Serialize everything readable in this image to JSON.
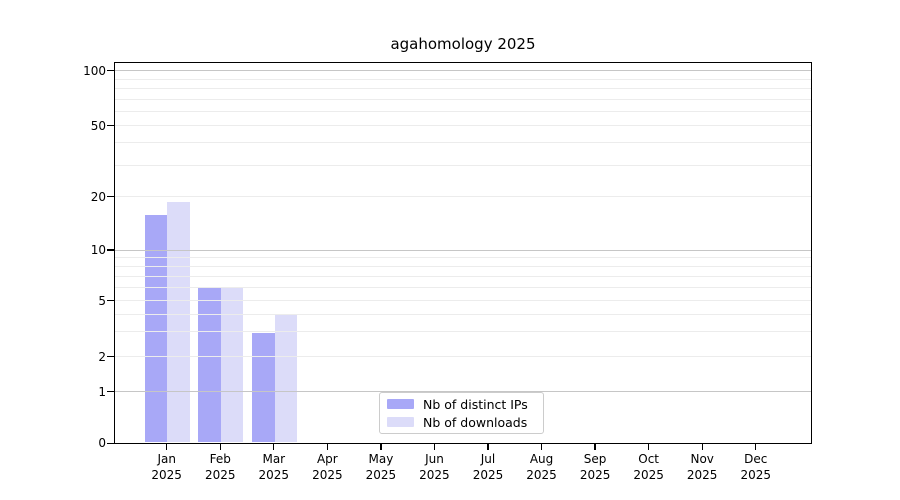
{
  "chart_data": {
    "type": "bar",
    "title": "agahomology 2025",
    "categories": [
      "Jan",
      "Feb",
      "Mar",
      "Apr",
      "May",
      "Jun",
      "Jul",
      "Aug",
      "Sep",
      "Oct",
      "Nov",
      "Dec"
    ],
    "year_label": "2025",
    "series": [
      {
        "name": "Nb of distinct IPs",
        "color": "#a8a8f7",
        "values": [
          16,
          6,
          3,
          0,
          0,
          0,
          0,
          0,
          0,
          0,
          0,
          0
        ]
      },
      {
        "name": "Nb of downloads",
        "color": "#dcdcf9",
        "values": [
          19,
          6,
          4,
          0,
          0,
          0,
          0,
          0,
          0,
          0,
          0,
          0
        ]
      }
    ],
    "y_ticks": [
      0,
      1,
      2,
      5,
      10,
      20,
      50,
      100
    ],
    "ylim": [
      0,
      100
    ],
    "scale": "symlog",
    "grid": true,
    "major_gridlines": [
      1,
      10,
      100
    ],
    "minor_gridlines": [
      2,
      3,
      4,
      5,
      6,
      7,
      8,
      9,
      20,
      30,
      40,
      50,
      60,
      70,
      80,
      90
    ],
    "legend_position": "lower-center-inside"
  }
}
